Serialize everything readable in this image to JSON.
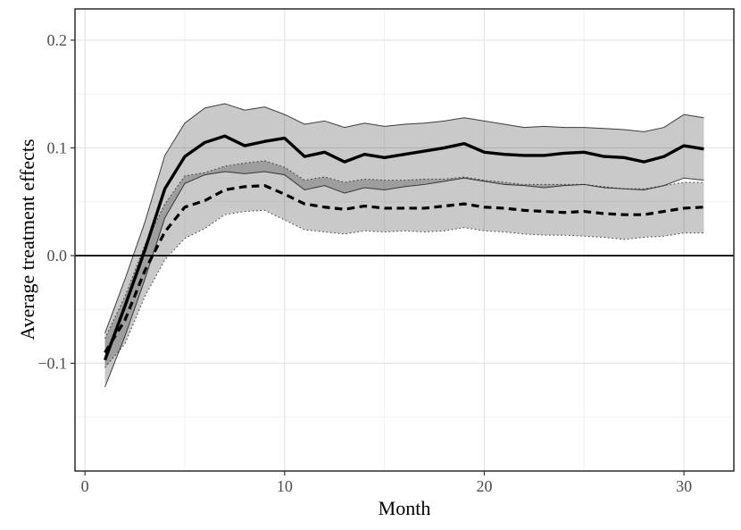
{
  "figure": {
    "kind": "statistical line chart with confidence ribbons",
    "background": "#ffffff",
    "title": ""
  },
  "chart_data": {
    "type": "line",
    "title": "",
    "xlabel": "Month",
    "ylabel": "Average treatment effects",
    "grid": true,
    "legend_position": "none",
    "xlim": [
      -0.5,
      32.5
    ],
    "ylim": [
      -0.2,
      0.229
    ],
    "reference_line_y": 0,
    "x_axis": {
      "tick_values": [
        0,
        10,
        20,
        30
      ],
      "tick_labels": [
        "0",
        "10",
        "20",
        "30"
      ],
      "minor_tick_values": [
        5,
        15,
        25
      ]
    },
    "y_axis": {
      "tick_values": [
        0.2,
        0.1,
        0.0,
        -0.1
      ],
      "tick_labels": [
        "0.2",
        "0.1",
        "0.0",
        "−0.1"
      ],
      "minor_tick_values": [
        0.15,
        0.05,
        -0.05,
        -0.15
      ]
    },
    "x": [
      1,
      2,
      3,
      4,
      5,
      6,
      7,
      8,
      9,
      10,
      11,
      12,
      13,
      14,
      15,
      16,
      17,
      18,
      19,
      20,
      21,
      22,
      23,
      24,
      25,
      26,
      27,
      28,
      29,
      30,
      31
    ],
    "series": [
      {
        "name": "solid-estimate",
        "line_style": "solid",
        "line_color": "#000000",
        "band_edge_style": "solid",
        "values": [
          -0.097,
          -0.047,
          0.005,
          0.062,
          0.092,
          0.105,
          0.111,
          0.102,
          0.106,
          0.109,
          0.092,
          0.096,
          0.087,
          0.094,
          0.091,
          0.094,
          0.097,
          0.1,
          0.104,
          0.096,
          0.094,
          0.093,
          0.093,
          0.095,
          0.096,
          0.092,
          0.091,
          0.087,
          0.092,
          0.102,
          0.099
        ],
        "ci_upper": [
          -0.072,
          -0.022,
          0.031,
          0.093,
          0.123,
          0.137,
          0.141,
          0.135,
          0.138,
          0.131,
          0.122,
          0.125,
          0.119,
          0.123,
          0.12,
          0.122,
          0.123,
          0.125,
          0.128,
          0.125,
          0.122,
          0.119,
          0.12,
          0.119,
          0.119,
          0.118,
          0.117,
          0.115,
          0.119,
          0.131,
          0.128
        ],
        "ci_lower": [
          -0.122,
          -0.075,
          -0.022,
          0.035,
          0.067,
          0.075,
          0.078,
          0.076,
          0.078,
          0.075,
          0.061,
          0.065,
          0.058,
          0.063,
          0.061,
          0.064,
          0.066,
          0.069,
          0.072,
          0.069,
          0.066,
          0.065,
          0.063,
          0.065,
          0.066,
          0.063,
          0.062,
          0.061,
          0.065,
          0.072,
          0.07
        ]
      },
      {
        "name": "dashed-estimate",
        "line_style": "dashed",
        "line_color": "#000000",
        "band_edge_style": "dotted",
        "values": [
          -0.09,
          -0.06,
          -0.014,
          0.022,
          0.045,
          0.051,
          0.061,
          0.064,
          0.065,
          0.057,
          0.048,
          0.045,
          0.043,
          0.046,
          0.044,
          0.044,
          0.044,
          0.046,
          0.048,
          0.045,
          0.044,
          0.042,
          0.041,
          0.04,
          0.041,
          0.039,
          0.038,
          0.038,
          0.041,
          0.044,
          0.045
        ],
        "ci_upper": [
          -0.077,
          -0.038,
          0.01,
          0.048,
          0.074,
          0.077,
          0.083,
          0.086,
          0.088,
          0.082,
          0.07,
          0.073,
          0.068,
          0.071,
          0.07,
          0.07,
          0.071,
          0.071,
          0.073,
          0.07,
          0.068,
          0.066,
          0.066,
          0.066,
          0.066,
          0.064,
          0.062,
          0.062,
          0.065,
          0.068,
          0.068
        ],
        "ci_lower": [
          -0.104,
          -0.082,
          -0.038,
          -0.004,
          0.016,
          0.025,
          0.038,
          0.041,
          0.042,
          0.033,
          0.024,
          0.022,
          0.02,
          0.023,
          0.022,
          0.023,
          0.022,
          0.023,
          0.026,
          0.023,
          0.022,
          0.02,
          0.019,
          0.019,
          0.018,
          0.017,
          0.015,
          0.017,
          0.018,
          0.021,
          0.021
        ]
      }
    ],
    "style": {
      "band_fill": "rgba(0,0,0,0.21)",
      "major_grid_color": "#e2e2e2",
      "minor_grid_color": "#f0f0f0",
      "panel_border_color": "#2b2b2b",
      "reference_line_color": "#000000",
      "tick_label_color": "#4d4d4d",
      "axis_title_color": "#000000"
    }
  }
}
